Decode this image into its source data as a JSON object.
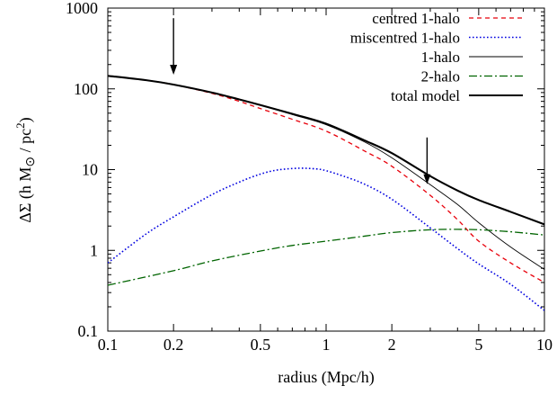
{
  "chart_data": {
    "type": "line",
    "xscale": "log",
    "yscale": "log",
    "xlim": [
      0.1,
      10
    ],
    "ylim": [
      0.1,
      1000
    ],
    "xlabel": "radius (Mpc/h)",
    "ylabel_main": "ΔΣ (h M",
    "ylabel_tail": " / pc",
    "ylabel_sub": "⊙",
    "ylabel_sup": "2",
    "ylabel_end": ")",
    "x_ticks": [
      {
        "value": 0.1,
        "label": "0.1"
      },
      {
        "value": 0.2,
        "label": "0.2"
      },
      {
        "value": 0.5,
        "label": "0.5"
      },
      {
        "value": 1,
        "label": "1"
      },
      {
        "value": 2,
        "label": "2"
      },
      {
        "value": 5,
        "label": "5"
      },
      {
        "value": 10,
        "label": "10"
      }
    ],
    "y_ticks": [
      {
        "value": 0.1,
        "label": "0.1"
      },
      {
        "value": 1,
        "label": "1"
      },
      {
        "value": 10,
        "label": "10"
      },
      {
        "value": 100,
        "label": "100"
      },
      {
        "value": 1000,
        "label": "1000"
      }
    ],
    "legend_position": "top-right",
    "series": [
      {
        "name": "centred 1-halo",
        "color": "#e8000b",
        "style": "dashed",
        "x": [
          0.1,
          0.15,
          0.2,
          0.3,
          0.4,
          0.5,
          0.7,
          1.0,
          1.5,
          2.0,
          3.0,
          4.0,
          5.0,
          7.0,
          10.0
        ],
        "y": [
          145,
          128,
          113,
          88,
          70,
          57,
          42,
          30,
          17,
          11,
          4.8,
          2.4,
          1.3,
          0.7,
          0.4
        ]
      },
      {
        "name": "miscentred 1-halo",
        "color": "#0000e0",
        "style": "dotted",
        "x": [
          0.1,
          0.15,
          0.2,
          0.3,
          0.4,
          0.5,
          0.6,
          0.75,
          0.9,
          1.0,
          1.2,
          1.5,
          2.0,
          3.0,
          4.0,
          5.0,
          7.0,
          10.0
        ],
        "y": [
          0.7,
          1.6,
          2.6,
          4.9,
          7.0,
          8.8,
          9.9,
          10.4,
          10.2,
          9.7,
          8.3,
          6.6,
          4.3,
          1.9,
          1.05,
          0.68,
          0.38,
          0.18
        ]
      },
      {
        "name": "1-halo",
        "color": "#000000",
        "style": "thin",
        "x": [
          0.1,
          0.15,
          0.2,
          0.3,
          0.4,
          0.5,
          0.7,
          1.0,
          1.5,
          2.0,
          3.0,
          4.0,
          5.0,
          7.0,
          10.0
        ],
        "y": [
          145,
          128,
          113,
          90,
          74,
          63,
          48,
          36,
          22,
          14,
          6.5,
          3.7,
          2.2,
          1.1,
          0.58
        ]
      },
      {
        "name": "2-halo",
        "color": "#006400",
        "style": "dashdot",
        "x": [
          0.1,
          0.2,
          0.3,
          0.5,
          0.7,
          1.0,
          1.5,
          2.0,
          3.0,
          4.0,
          5.0,
          7.0,
          10.0
        ],
        "y": [
          0.37,
          0.56,
          0.74,
          0.98,
          1.15,
          1.3,
          1.5,
          1.66,
          1.8,
          1.82,
          1.8,
          1.7,
          1.55
        ]
      },
      {
        "name": "total model",
        "color": "#000000",
        "style": "thick",
        "x": [
          0.1,
          0.15,
          0.2,
          0.3,
          0.4,
          0.5,
          0.7,
          1.0,
          1.5,
          2.0,
          3.0,
          4.0,
          5.0,
          7.0,
          10.0
        ],
        "y": [
          145,
          128,
          113,
          90,
          74,
          63,
          49,
          37,
          23,
          16,
          8.3,
          5.5,
          4.2,
          3.0,
          2.1
        ]
      }
    ],
    "annotations": [
      {
        "type": "arrow",
        "x": 0.2,
        "y_from": 750,
        "y_to": 150
      },
      {
        "type": "arrow",
        "x": 2.9,
        "y_from": 25,
        "y_to": 6.6
      }
    ]
  }
}
